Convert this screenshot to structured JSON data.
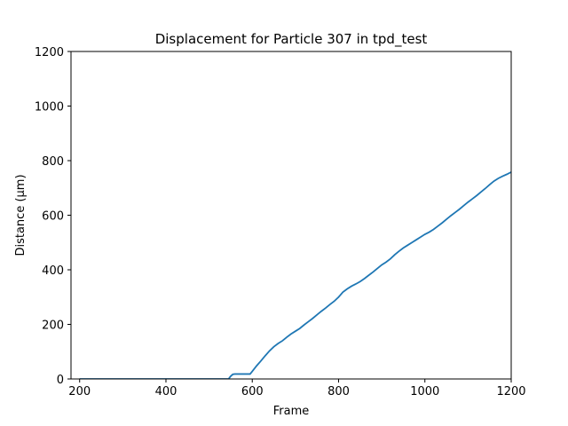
{
  "chart_data": {
    "type": "line",
    "title": "Displacement for Particle 307 in tpd_test",
    "xlabel": "Frame",
    "ylabel": "Distance (µm)",
    "xlim": [
      180,
      1200
    ],
    "ylim": [
      0,
      1200
    ],
    "x_ticks": [
      200,
      400,
      600,
      800,
      1000,
      1200
    ],
    "y_ticks": [
      0,
      200,
      400,
      600,
      800,
      1000,
      1200
    ],
    "grid": false,
    "colors": {
      "series": "#1f77b4",
      "axes": "#000000"
    },
    "series": [
      {
        "x": [
          200,
          545,
          550,
          555,
          560,
          570,
          580,
          590,
          595,
          600,
          605,
          610,
          620,
          630,
          640,
          650,
          660,
          670,
          680,
          690,
          700,
          710,
          720,
          730,
          740,
          750,
          760,
          770,
          780,
          790,
          800,
          810,
          820,
          830,
          840,
          850,
          860,
          870,
          880,
          890,
          900,
          910,
          920,
          930,
          940,
          950,
          960,
          970,
          980,
          990,
          1000,
          1010,
          1020,
          1030,
          1040,
          1050,
          1060,
          1070,
          1080,
          1090,
          1100,
          1110,
          1120,
          1130,
          1140,
          1150,
          1160,
          1170,
          1180,
          1190,
          1200
        ],
        "y": [
          0,
          0,
          10,
          17,
          18,
          18,
          18,
          18,
          18,
          28,
          38,
          48,
          66,
          85,
          103,
          118,
          130,
          140,
          153,
          165,
          175,
          185,
          198,
          210,
          222,
          235,
          248,
          260,
          273,
          285,
          300,
          318,
          330,
          340,
          348,
          357,
          368,
          380,
          392,
          405,
          418,
          428,
          440,
          455,
          468,
          480,
          490,
          500,
          510,
          520,
          530,
          538,
          548,
          560,
          572,
          585,
          598,
          610,
          622,
          635,
          648,
          660,
          672,
          685,
          698,
          712,
          725,
          735,
          743,
          750,
          758
        ]
      }
    ]
  }
}
